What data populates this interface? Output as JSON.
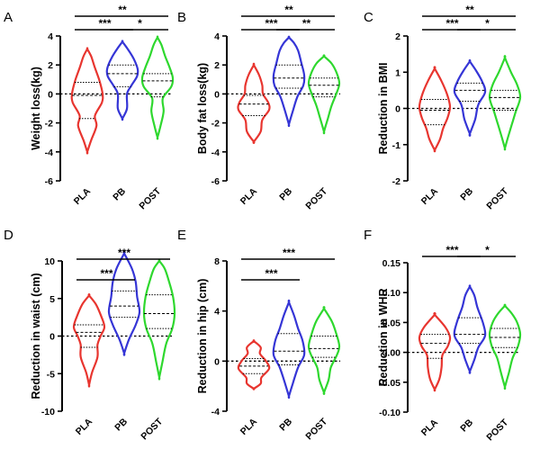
{
  "colors": {
    "PLA": "#e8352f",
    "PB": "#3535d6",
    "POST": "#2ed82e"
  },
  "chart_data": [
    {
      "letter": "A",
      "type": "violin",
      "ylabel": "Weight loss(kg)",
      "ylim": [
        -6,
        4
      ],
      "yticks": [
        -6,
        -4,
        -2,
        0,
        2,
        4
      ],
      "categories": [
        "PLA",
        "PB",
        "POST"
      ],
      "series": [
        {
          "category": "PLA",
          "min": -4.0,
          "max": 3.1,
          "median": -0.1,
          "q1": -1.7,
          "q3": 0.8,
          "profile": [
            [
              -4.0,
              0.0
            ],
            [
              -3.2,
              0.25
            ],
            [
              -2.2,
              0.6
            ],
            [
              -1.5,
              0.5
            ],
            [
              -0.6,
              0.95
            ],
            [
              0.0,
              1.0
            ],
            [
              0.9,
              0.8
            ],
            [
              1.8,
              0.5
            ],
            [
              2.6,
              0.25
            ],
            [
              3.1,
              0.0
            ]
          ]
        },
        {
          "category": "PB",
          "min": -1.7,
          "max": 3.6,
          "median": 1.4,
          "q1": 0.5,
          "q3": 2.0,
          "profile": [
            [
              -1.7,
              0.0
            ],
            [
              -1.0,
              0.3
            ],
            [
              0.0,
              0.3
            ],
            [
              0.6,
              0.6
            ],
            [
              1.2,
              0.95
            ],
            [
              1.7,
              1.0
            ],
            [
              2.4,
              0.75
            ],
            [
              3.1,
              0.35
            ],
            [
              3.6,
              0.0
            ]
          ]
        },
        {
          "category": "POST",
          "min": -3.0,
          "max": 3.9,
          "median": 0.9,
          "q1": -0.2,
          "q3": 1.4,
          "profile": [
            [
              -3.0,
              0.0
            ],
            [
              -2.2,
              0.2
            ],
            [
              -1.2,
              0.4
            ],
            [
              -0.3,
              0.35
            ],
            [
              0.5,
              0.9
            ],
            [
              1.1,
              1.0
            ],
            [
              1.8,
              0.8
            ],
            [
              2.6,
              0.5
            ],
            [
              3.4,
              0.25
            ],
            [
              3.9,
              0.0
            ]
          ]
        }
      ],
      "comparisons": [
        {
          "from": "PLA",
          "to": "POST",
          "label": "**"
        },
        {
          "from": "PLA",
          "to": "PB",
          "label": "***"
        },
        {
          "from": "PB",
          "to": "POST",
          "label": "*"
        }
      ]
    },
    {
      "letter": "B",
      "type": "violin",
      "ylabel": "Body fat loss(kg)",
      "ylim": [
        -6,
        4
      ],
      "yticks": [
        -6,
        -4,
        -2,
        0,
        2,
        4
      ],
      "categories": [
        "PLA",
        "PB",
        "POST"
      ],
      "series": [
        {
          "category": "PLA",
          "min": -3.3,
          "max": 2.0,
          "median": -0.7,
          "q1": -1.5,
          "q3": -0.1,
          "profile": [
            [
              -3.3,
              0.0
            ],
            [
              -2.6,
              0.45
            ],
            [
              -1.8,
              0.55
            ],
            [
              -1.1,
              1.0
            ],
            [
              -0.6,
              0.95
            ],
            [
              0.0,
              0.6
            ],
            [
              0.6,
              0.55
            ],
            [
              1.3,
              0.35
            ],
            [
              2.0,
              0.0
            ]
          ]
        },
        {
          "category": "PB",
          "min": -2.1,
          "max": 3.9,
          "median": 1.1,
          "q1": 0.4,
          "q3": 2.0,
          "profile": [
            [
              -2.1,
              0.0
            ],
            [
              -1.2,
              0.25
            ],
            [
              -0.2,
              0.55
            ],
            [
              0.6,
              0.95
            ],
            [
              1.3,
              1.0
            ],
            [
              2.2,
              0.8
            ],
            [
              3.0,
              0.6
            ],
            [
              3.5,
              0.35
            ],
            [
              3.9,
              0.0
            ]
          ]
        },
        {
          "category": "POST",
          "min": -2.6,
          "max": 2.6,
          "median": 0.6,
          "q1": -0.2,
          "q3": 1.1,
          "profile": [
            [
              -2.6,
              0.0
            ],
            [
              -1.7,
              0.25
            ],
            [
              -0.8,
              0.5
            ],
            [
              0.0,
              0.8
            ],
            [
              0.7,
              1.0
            ],
            [
              1.4,
              0.85
            ],
            [
              2.1,
              0.5
            ],
            [
              2.6,
              0.0
            ]
          ]
        }
      ],
      "comparisons": [
        {
          "from": "PLA",
          "to": "POST",
          "label": "**"
        },
        {
          "from": "PLA",
          "to": "PB",
          "label": "***"
        },
        {
          "from": "PB",
          "to": "POST",
          "label": "**"
        }
      ]
    },
    {
      "letter": "C",
      "type": "violin",
      "ylabel": "Reduction in BMI",
      "ylim": [
        -2,
        2
      ],
      "yticks": [
        -2,
        -1,
        0,
        1,
        2
      ],
      "categories": [
        "PLA",
        "PB",
        "POST"
      ],
      "series": [
        {
          "category": "PLA",
          "min": -1.15,
          "max": 1.1,
          "median": -0.05,
          "q1": -0.45,
          "q3": 0.25,
          "profile": [
            [
              -1.15,
              0.0
            ],
            [
              -0.85,
              0.35
            ],
            [
              -0.55,
              0.55
            ],
            [
              -0.25,
              0.85
            ],
            [
              0.05,
              1.0
            ],
            [
              0.4,
              0.8
            ],
            [
              0.75,
              0.45
            ],
            [
              1.1,
              0.0
            ]
          ]
        },
        {
          "category": "PB",
          "min": -0.7,
          "max": 1.3,
          "median": 0.5,
          "q1": 0.2,
          "q3": 0.7,
          "profile": [
            [
              -0.7,
              0.0
            ],
            [
              -0.3,
              0.35
            ],
            [
              0.1,
              0.55
            ],
            [
              0.45,
              1.0
            ],
            [
              0.75,
              0.8
            ],
            [
              1.05,
              0.4
            ],
            [
              1.3,
              0.0
            ]
          ]
        },
        {
          "category": "POST",
          "min": -1.1,
          "max": 1.4,
          "median": 0.3,
          "q1": -0.05,
          "q3": 0.5,
          "profile": [
            [
              -1.1,
              0.0
            ],
            [
              -0.8,
              0.2
            ],
            [
              -0.45,
              0.45
            ],
            [
              -0.1,
              0.7
            ],
            [
              0.3,
              1.0
            ],
            [
              0.65,
              0.8
            ],
            [
              1.0,
              0.4
            ],
            [
              1.4,
              0.0
            ]
          ]
        }
      ],
      "comparisons": [
        {
          "from": "PLA",
          "to": "POST",
          "label": "**"
        },
        {
          "from": "PLA",
          "to": "PB",
          "label": "***"
        },
        {
          "from": "PB",
          "to": "POST",
          "label": "*"
        }
      ]
    },
    {
      "letter": "D",
      "type": "violin",
      "ylabel": "Reduction in waist (cm)",
      "ylim": [
        -10,
        10
      ],
      "yticks": [
        -10,
        -5,
        0,
        5,
        10
      ],
      "categories": [
        "PLA",
        "PB",
        "POST"
      ],
      "series": [
        {
          "category": "PLA",
          "min": -6.5,
          "max": 5.4,
          "median": 0.5,
          "q1": -1.5,
          "q3": 1.5,
          "profile": [
            [
              -6.5,
              0.0
            ],
            [
              -4.8,
              0.2
            ],
            [
              -2.8,
              0.55
            ],
            [
              -1.2,
              0.55
            ],
            [
              0.0,
              0.75
            ],
            [
              1.2,
              1.0
            ],
            [
              2.6,
              0.8
            ],
            [
              4.2,
              0.45
            ],
            [
              5.4,
              0.0
            ]
          ]
        },
        {
          "category": "PB",
          "min": -2.3,
          "max": 11.0,
          "median": 4.0,
          "q1": 2.5,
          "q3": 6.0,
          "profile": [
            [
              -2.3,
              0.0
            ],
            [
              -0.5,
              0.3
            ],
            [
              1.5,
              0.75
            ],
            [
              3.2,
              1.0
            ],
            [
              5.2,
              0.85
            ],
            [
              7.2,
              0.75
            ],
            [
              9.0,
              0.5
            ],
            [
              11.0,
              0.0
            ]
          ]
        },
        {
          "category": "POST",
          "min": -5.5,
          "max": 10.0,
          "median": 3.0,
          "q1": 1.0,
          "q3": 5.5,
          "profile": [
            [
              -5.5,
              0.0
            ],
            [
              -3.5,
              0.2
            ],
            [
              -1.0,
              0.45
            ],
            [
              1.0,
              0.85
            ],
            [
              3.0,
              1.0
            ],
            [
              5.2,
              0.9
            ],
            [
              7.5,
              0.6
            ],
            [
              9.0,
              0.35
            ],
            [
              10.0,
              0.0
            ]
          ]
        }
      ],
      "comparisons": [
        {
          "from": "PLA",
          "to": "POST",
          "label": "***"
        },
        {
          "from": "PLA",
          "to": "PB",
          "label": "***"
        }
      ]
    },
    {
      "letter": "E",
      "type": "violin",
      "ylabel": "Reduction in hip (cm)",
      "ylim": [
        -4,
        8
      ],
      "yticks": [
        -4,
        0,
        4,
        8
      ],
      "categories": [
        "PLA",
        "PB",
        "POST"
      ],
      "series": [
        {
          "category": "PLA",
          "min": -2.2,
          "max": 1.6,
          "median": -0.4,
          "q1": -1.0,
          "q3": 0.2,
          "profile": [
            [
              -2.2,
              0.0
            ],
            [
              -1.8,
              0.45
            ],
            [
              -1.3,
              0.5
            ],
            [
              -0.6,
              1.0
            ],
            [
              0.0,
              0.8
            ],
            [
              0.6,
              0.4
            ],
            [
              1.1,
              0.45
            ],
            [
              1.6,
              0.0
            ]
          ]
        },
        {
          "category": "PB",
          "min": -2.8,
          "max": 4.7,
          "median": 0.8,
          "q1": -0.3,
          "q3": 2.2,
          "profile": [
            [
              -2.8,
              0.0
            ],
            [
              -1.8,
              0.25
            ],
            [
              -0.5,
              0.6
            ],
            [
              0.5,
              1.0
            ],
            [
              1.6,
              0.9
            ],
            [
              2.6,
              0.6
            ],
            [
              3.6,
              0.35
            ],
            [
              4.7,
              0.0
            ]
          ]
        },
        {
          "category": "POST",
          "min": -2.5,
          "max": 4.2,
          "median": 1.0,
          "q1": 0.3,
          "q3": 2.0,
          "profile": [
            [
              -2.5,
              0.0
            ],
            [
              -1.5,
              0.3
            ],
            [
              -0.5,
              0.45
            ],
            [
              0.5,
              0.85
            ],
            [
              1.2,
              1.0
            ],
            [
              2.2,
              0.8
            ],
            [
              3.2,
              0.5
            ],
            [
              4.2,
              0.0
            ]
          ]
        }
      ],
      "comparisons": [
        {
          "from": "PLA",
          "to": "POST",
          "label": "***"
        },
        {
          "from": "PLA",
          "to": "PB",
          "label": "***"
        }
      ]
    },
    {
      "letter": "F",
      "type": "violin",
      "ylabel": "Reduction in WHR",
      "ylim": [
        -0.1,
        0.15
      ],
      "yticks": [
        -0.1,
        -0.05,
        0.0,
        0.05,
        0.1,
        0.15
      ],
      "categories": [
        "PLA",
        "PB",
        "POST"
      ],
      "series": [
        {
          "category": "PLA",
          "min": -0.062,
          "max": 0.063,
          "median": 0.015,
          "q1": -0.01,
          "q3": 0.03,
          "profile": [
            [
              -0.062,
              0.0
            ],
            [
              -0.045,
              0.3
            ],
            [
              -0.025,
              0.45
            ],
            [
              -0.005,
              0.5
            ],
            [
              0.01,
              0.85
            ],
            [
              0.025,
              1.0
            ],
            [
              0.042,
              0.7
            ],
            [
              0.063,
              0.0
            ]
          ]
        },
        {
          "category": "PB",
          "min": -0.032,
          "max": 0.11,
          "median": 0.03,
          "q1": 0.015,
          "q3": 0.058,
          "profile": [
            [
              -0.032,
              0.0
            ],
            [
              -0.012,
              0.3
            ],
            [
              0.008,
              0.55
            ],
            [
              0.028,
              1.0
            ],
            [
              0.05,
              0.85
            ],
            [
              0.075,
              0.5
            ],
            [
              0.095,
              0.3
            ],
            [
              0.11,
              0.0
            ]
          ]
        },
        {
          "category": "POST",
          "min": -0.058,
          "max": 0.078,
          "median": 0.025,
          "q1": 0.008,
          "q3": 0.04,
          "profile": [
            [
              -0.058,
              0.0
            ],
            [
              -0.035,
              0.25
            ],
            [
              -0.01,
              0.5
            ],
            [
              0.01,
              0.85
            ],
            [
              0.03,
              1.0
            ],
            [
              0.05,
              0.8
            ],
            [
              0.065,
              0.45
            ],
            [
              0.078,
              0.0
            ]
          ]
        }
      ],
      "comparisons": [
        {
          "from": "PLA",
          "to": "PB",
          "label": "***"
        },
        {
          "from": "PB",
          "to": "POST",
          "label": "*"
        }
      ]
    }
  ]
}
